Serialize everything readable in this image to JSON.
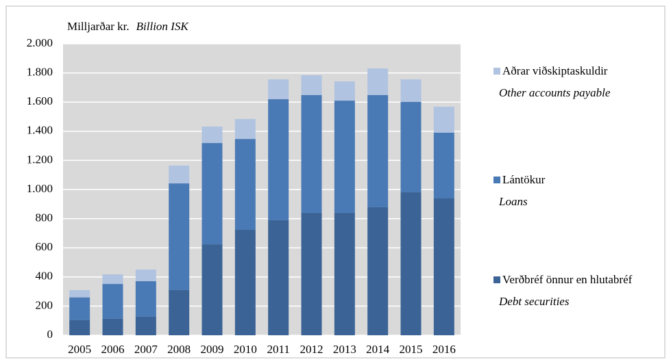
{
  "chart_data": {
    "type": "stacked_bar",
    "y_label": "Milljarðar kr.",
    "y_label_en": "Billion ISK",
    "categories": [
      "2005",
      "2006",
      "2007",
      "2008",
      "2009",
      "2010",
      "2011",
      "2012",
      "2013",
      "2014",
      "2015",
      "2016"
    ],
    "series": [
      {
        "name": "Verðbréf önnur en hlutabréf",
        "name_en": "Debt securities",
        "color": "#3b6395",
        "values": [
          105,
          113,
          127,
          310,
          624,
          723,
          789,
          840,
          840,
          878,
          981,
          939
        ]
      },
      {
        "name": "Lántökur",
        "name_en": "Loans",
        "color": "#4a7ab5",
        "values": [
          155,
          239,
          244,
          732,
          695,
          624,
          831,
          808,
          770,
          770,
          620,
          451
        ]
      },
      {
        "name": "Aðrar viðskiptaskuldir",
        "name_en": "Other accounts payable",
        "color": "#b0c3e0",
        "values": [
          50,
          66,
          80,
          122,
          113,
          137,
          136,
          136,
          132,
          183,
          155,
          178
        ]
      }
    ],
    "ylim": [
      0,
      2000
    ],
    "yticks": [
      0,
      200,
      400,
      600,
      800,
      {
        "value": 1000,
        "label": "1.000"
      },
      {
        "value": 1200,
        "label": "1.200"
      },
      {
        "value": 1400,
        "label": "1.400"
      },
      {
        "value": 1600,
        "label": "1.600"
      },
      {
        "value": 1800,
        "label": "1.800"
      },
      {
        "value": 2000,
        "label": "2.000"
      }
    ],
    "grid": true,
    "plot_background": "#d9d9d9"
  }
}
